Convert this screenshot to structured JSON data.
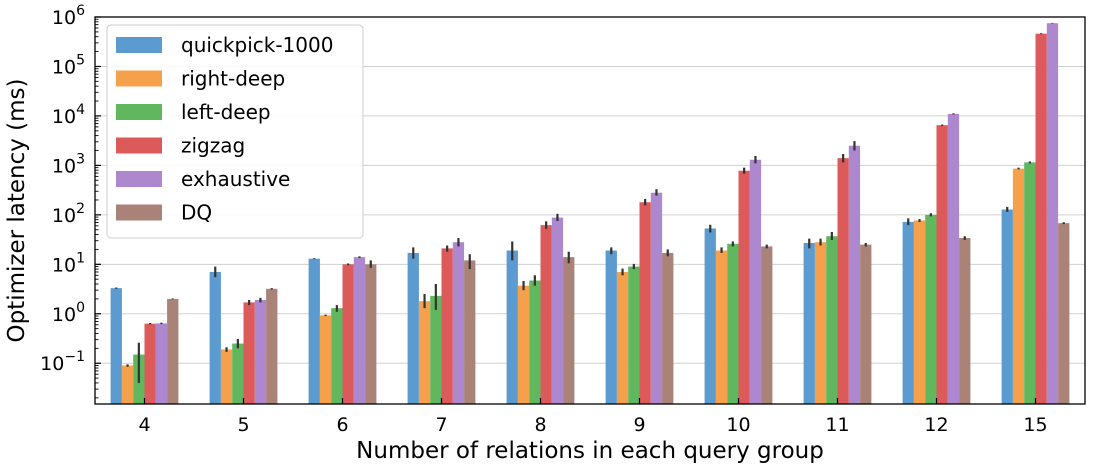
{
  "chart_data": {
    "type": "bar",
    "xlabel": "Number of relations in each query group",
    "ylabel": "Optimizer latency (ms)",
    "yscale": "log",
    "ylim": [
      0.015,
      1000000
    ],
    "grid": "horizontal",
    "legend_position": "top-left",
    "categories": [
      "4",
      "5",
      "6",
      "7",
      "8",
      "9",
      "10",
      "11",
      "12",
      "15"
    ],
    "y_ticks": [
      {
        "value": 0.1,
        "base": "10",
        "exp": "−1"
      },
      {
        "value": 1,
        "base": "10",
        "exp": "0"
      },
      {
        "value": 10,
        "base": "10",
        "exp": "1"
      },
      {
        "value": 100,
        "base": "10",
        "exp": "2"
      },
      {
        "value": 1000,
        "base": "10",
        "exp": "3"
      },
      {
        "value": 10000,
        "base": "10",
        "exp": "4"
      },
      {
        "value": 100000,
        "base": "10",
        "exp": "5"
      },
      {
        "value": 1000000,
        "base": "10",
        "exp": "6"
      }
    ],
    "series": [
      {
        "name": "quickpick-1000",
        "color": "#5b9bd0",
        "values": [
          3.3,
          7.0,
          13.0,
          17.0,
          19.0,
          19.0,
          53.0,
          27.0,
          72.0,
          128.0
        ],
        "err_low": [
          3.2,
          5.5,
          12.7,
          13.0,
          12.0,
          16.0,
          44.0,
          21.0,
          62.0,
          115.0
        ],
        "err_high": [
          3.4,
          9.0,
          13.3,
          22.0,
          29.0,
          22.0,
          63.0,
          33.0,
          85.0,
          145.0
        ]
      },
      {
        "name": "right-deep",
        "color": "#f5a14c",
        "values": [
          0.09,
          0.19,
          0.93,
          1.8,
          3.7,
          7.0,
          19.0,
          28.0,
          77.0,
          860.0
        ],
        "err_low": [
          0.085,
          0.17,
          0.9,
          1.3,
          3.0,
          6.0,
          17.0,
          24.0,
          72.0,
          830.0
        ],
        "err_high": [
          0.095,
          0.21,
          0.96,
          2.5,
          4.6,
          8.2,
          22.0,
          33.0,
          82.0,
          900.0
        ]
      },
      {
        "name": "left-deep",
        "color": "#60b75d",
        "values": [
          0.15,
          0.25,
          1.3,
          2.3,
          4.7,
          9.0,
          26.0,
          37.0,
          100.0,
          1150.0
        ],
        "err_low": [
          0.04,
          0.2,
          1.1,
          1.2,
          3.7,
          8.0,
          23.0,
          31.0,
          93.0,
          1100.0
        ],
        "err_high": [
          0.26,
          0.31,
          1.5,
          4.0,
          6.0,
          10.2,
          29.0,
          45.0,
          108.0,
          1200.0
        ]
      },
      {
        "name": "zigzag",
        "color": "#dc5a5a",
        "values": [
          0.63,
          1.7,
          10.0,
          21.0,
          62.0,
          180.0,
          780.0,
          1400.0,
          6500.0,
          460000.0
        ],
        "err_low": [
          0.61,
          1.5,
          9.6,
          18.0,
          52.0,
          155.0,
          680.0,
          1150.0,
          6300.0,
          450000.0
        ],
        "err_high": [
          0.65,
          1.9,
          10.4,
          24.0,
          74.0,
          210.0,
          900.0,
          1700.0,
          6700.0,
          470000.0
        ]
      },
      {
        "name": "exhaustive",
        "color": "#ad88cf",
        "values": [
          0.64,
          1.9,
          14.0,
          28.0,
          88.0,
          280.0,
          1300.0,
          2500.0,
          11000.0,
          750000.0
        ],
        "err_low": [
          0.62,
          1.7,
          13.5,
          23.0,
          75.0,
          245.0,
          1100.0,
          2000.0,
          10700.0,
          740000.0
        ],
        "err_high": [
          0.66,
          2.1,
          14.5,
          34.0,
          105.0,
          330.0,
          1550.0,
          3100.0,
          11300.0,
          760000.0
        ]
      },
      {
        "name": "DQ",
        "color": "#a98377",
        "values": [
          2.0,
          3.2,
          10.0,
          12.0,
          14.0,
          17.0,
          23.0,
          25.0,
          34.0,
          68.0
        ],
        "err_low": [
          1.96,
          3.1,
          8.5,
          8.0,
          10.5,
          14.5,
          21.0,
          23.0,
          31.0,
          65.0
        ],
        "err_high": [
          2.04,
          3.3,
          12.0,
          16.0,
          18.0,
          20.0,
          25.0,
          27.0,
          37.0,
          71.0
        ]
      }
    ]
  }
}
